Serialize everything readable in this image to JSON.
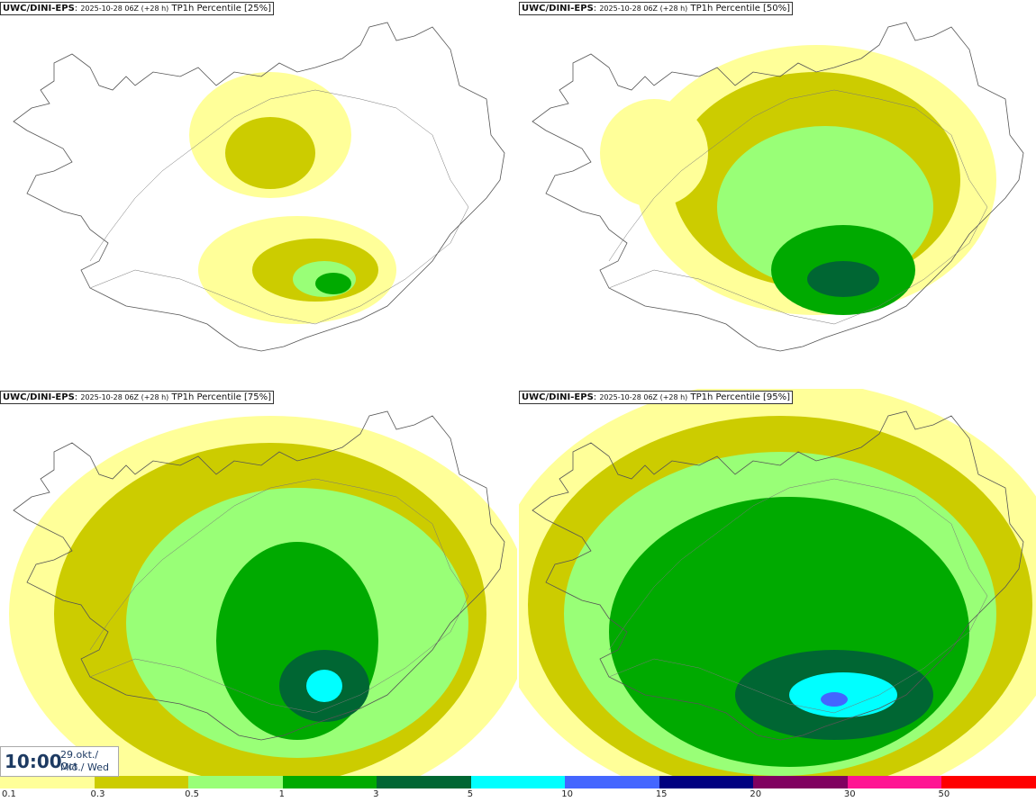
{
  "panels": [
    {
      "model": "UWC/DINI-EPS",
      "run": "2025-10-28 06Z (+28 h)",
      "label": "TP1h Percentile [25%]"
    },
    {
      "model": "UWC/DINI-EPS",
      "run": "2025-10-28 06Z (+28 h)",
      "label": "TP1h Percentile [50%]"
    },
    {
      "model": "UWC/DINI-EPS",
      "run": "2025-10-28 06Z (+28 h)",
      "label": "TP1h Percentile [75%]"
    },
    {
      "model": "UWC/DINI-EPS",
      "run": "2025-10-28 06Z (+28 h)",
      "label": "TP1h Percentile [95%]"
    }
  ],
  "valid_time": {
    "time": "10:00",
    "date": "29.okt./ Oct",
    "day": "Mið./ Wed"
  },
  "legend": {
    "labels": [
      "0.1",
      "0.3",
      "0.5",
      "1",
      "3",
      "5",
      "10",
      "15",
      "20",
      "30",
      "50"
    ],
    "colors": [
      "#ffff99",
      "#cccc00",
      "#99ff77",
      "#00aa00",
      "#006633",
      "#00ffff",
      "#4466ff",
      "#000080",
      "#800060",
      "#ff1493",
      "#ff0000"
    ]
  }
}
